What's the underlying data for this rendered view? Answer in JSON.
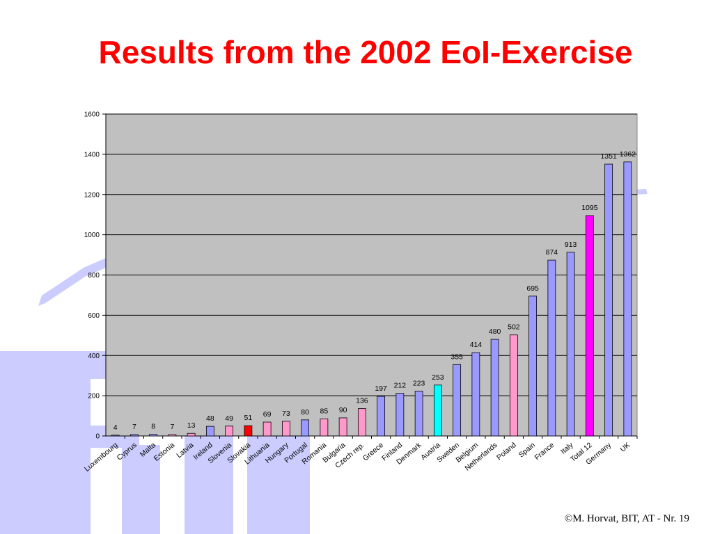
{
  "slide": {
    "title": "Results from the 2002 EoI-Exercise",
    "footer": "©M. Horvat, BIT, AT  - Nr. 19",
    "watermark_text": "BIT"
  },
  "colors": {
    "title": "#ff0000",
    "plot_background": "#c0c0c0",
    "watermark": "#ccccff"
  },
  "chart_data": {
    "type": "bar",
    "title": "",
    "xlabel": "",
    "ylabel": "",
    "ylim": [
      0,
      1600
    ],
    "yticks": [
      0,
      200,
      400,
      600,
      800,
      1000,
      1200,
      1400,
      1600
    ],
    "grid": true,
    "legend": false,
    "categories": [
      "Luxembourg",
      "Cyprus",
      "Malta",
      "Estonia",
      "Latvia",
      "Ireland",
      "Slovenia",
      "Slovakia",
      "Lithuania",
      "Hungary",
      "Portugal",
      "Romania",
      "Bulgaria",
      "Czech rep.",
      "Greece",
      "Finland",
      "Denmark",
      "Austria",
      "Sweden",
      "Belgium",
      "Netherlands",
      "Poland",
      "Spain",
      "France",
      "Italy",
      "Total 12",
      "Germany",
      "UK"
    ],
    "values": [
      4,
      7,
      8,
      7,
      13,
      48,
      49,
      51,
      69,
      73,
      80,
      85,
      90,
      136,
      197,
      212,
      223,
      253,
      355,
      414,
      480,
      502,
      695,
      874,
      913,
      1095,
      1351,
      1362
    ],
    "bar_colors": [
      "#9999ff",
      "#9999ff",
      "#9999ff",
      "#ff99cc",
      "#ff99cc",
      "#9999ff",
      "#ff99cc",
      "#ff0000",
      "#ff99cc",
      "#ff99cc",
      "#9999ff",
      "#ff99cc",
      "#ff99cc",
      "#ff99cc",
      "#9999ff",
      "#9999ff",
      "#9999ff",
      "#00ffff",
      "#9999ff",
      "#9999ff",
      "#9999ff",
      "#ff99cc",
      "#9999ff",
      "#9999ff",
      "#9999ff",
      "#ff00ff",
      "#9999ff",
      "#9999ff"
    ]
  }
}
